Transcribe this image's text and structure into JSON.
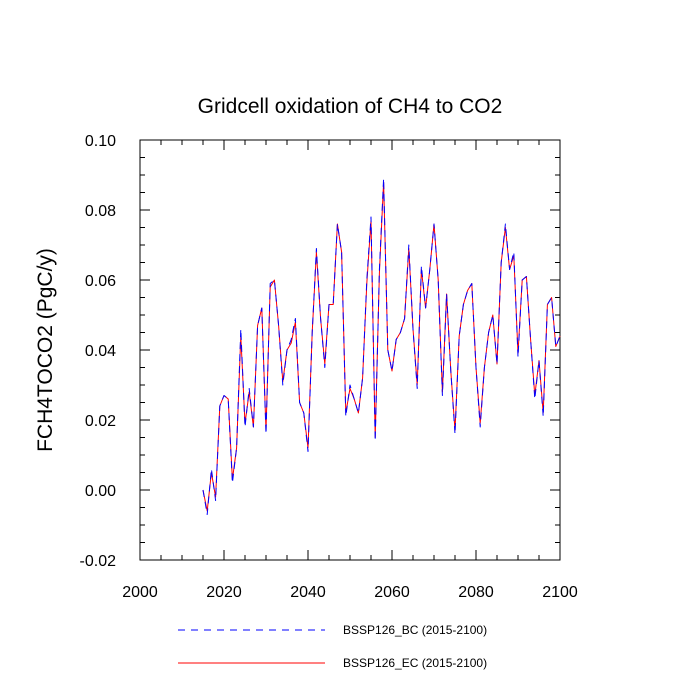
{
  "chart_data": {
    "type": "line",
    "title": "Gridcell oxidation of CH4 to CO2",
    "xlabel": "",
    "ylabel": "FCH4TOCO2  (PgC/y)",
    "xlim": [
      2000,
      2100
    ],
    "ylim": [
      -0.02,
      0.1
    ],
    "xticks": [
      2000,
      2020,
      2040,
      2060,
      2080,
      2100
    ],
    "xtick_labels": [
      "2000",
      "2020",
      "2040",
      "2060",
      "2080",
      "2100"
    ],
    "yticks": [
      -0.02,
      0.0,
      0.02,
      0.04,
      0.06,
      0.08,
      0.1
    ],
    "ytick_labels": [
      "-0.02",
      "0.00",
      "0.02",
      "0.04",
      "0.06",
      "0.08",
      "0.10"
    ],
    "x": [
      2015,
      2016,
      2017,
      2018,
      2019,
      2020,
      2021,
      2022,
      2023,
      2024,
      2025,
      2026,
      2027,
      2028,
      2029,
      2030,
      2031,
      2032,
      2033,
      2034,
      2035,
      2036,
      2037,
      2038,
      2039,
      2040,
      2041,
      2042,
      2043,
      2044,
      2045,
      2046,
      2047,
      2048,
      2049,
      2050,
      2051,
      2052,
      2053,
      2054,
      2055,
      2056,
      2057,
      2058,
      2059,
      2060,
      2061,
      2062,
      2063,
      2064,
      2065,
      2066,
      2067,
      2068,
      2069,
      2070,
      2071,
      2072,
      2073,
      2074,
      2075,
      2076,
      2077,
      2078,
      2079,
      2080,
      2081,
      2082,
      2083,
      2084,
      2085,
      2086,
      2087,
      2088,
      2089,
      2090,
      2091,
      2092,
      2093,
      2094,
      2095,
      2096,
      2097,
      2098,
      2099,
      2100
    ],
    "series": [
      {
        "name": "BSSP126_BC (2015-2100)",
        "color": "#0000ff",
        "dash": "dashed",
        "values": [
          0.0,
          -0.007,
          0.006,
          -0.003,
          0.024,
          0.027,
          0.026,
          0.002,
          0.012,
          0.046,
          0.018,
          0.029,
          0.018,
          0.047,
          0.052,
          0.016,
          0.059,
          0.06,
          0.047,
          0.03,
          0.04,
          0.043,
          0.049,
          0.025,
          0.022,
          0.011,
          0.045,
          0.069,
          0.049,
          0.035,
          0.053,
          0.053,
          0.076,
          0.068,
          0.021,
          0.03,
          0.026,
          0.022,
          0.032,
          0.06,
          0.078,
          0.014,
          0.063,
          0.089,
          0.04,
          0.034,
          0.043,
          0.045,
          0.049,
          0.07,
          0.046,
          0.029,
          0.064,
          0.052,
          0.063,
          0.076,
          0.06,
          0.027,
          0.056,
          0.034,
          0.016,
          0.044,
          0.053,
          0.057,
          0.059,
          0.035,
          0.018,
          0.035,
          0.045,
          0.05,
          0.036,
          0.065,
          0.076,
          0.063,
          0.068,
          0.038,
          0.06,
          0.061,
          0.043,
          0.026,
          0.037,
          0.021,
          0.053,
          0.055,
          0.041,
          0.044
        ]
      },
      {
        "name": "BSSP126_EC (2015-2100)",
        "color": "#ff0000",
        "dash": "solid",
        "values": [
          0.0,
          -0.006,
          0.005,
          -0.002,
          0.024,
          0.027,
          0.026,
          0.003,
          0.012,
          0.044,
          0.019,
          0.028,
          0.018,
          0.047,
          0.052,
          0.017,
          0.058,
          0.06,
          0.047,
          0.031,
          0.04,
          0.042,
          0.048,
          0.025,
          0.022,
          0.012,
          0.045,
          0.068,
          0.049,
          0.036,
          0.053,
          0.053,
          0.076,
          0.068,
          0.022,
          0.029,
          0.026,
          0.022,
          0.032,
          0.059,
          0.077,
          0.015,
          0.062,
          0.088,
          0.04,
          0.034,
          0.043,
          0.045,
          0.049,
          0.069,
          0.046,
          0.03,
          0.063,
          0.052,
          0.063,
          0.076,
          0.06,
          0.028,
          0.056,
          0.034,
          0.017,
          0.044,
          0.053,
          0.057,
          0.059,
          0.035,
          0.019,
          0.035,
          0.045,
          0.05,
          0.036,
          0.065,
          0.075,
          0.063,
          0.067,
          0.039,
          0.06,
          0.061,
          0.043,
          0.027,
          0.037,
          0.022,
          0.053,
          0.055,
          0.041,
          0.044
        ]
      }
    ],
    "legend": [
      "BSSP126_BC (2015-2100)",
      "BSSP126_EC (2015-2100)"
    ],
    "legend_position": "bottom",
    "grid": false
  }
}
